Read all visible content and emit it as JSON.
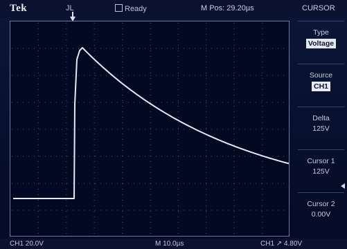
{
  "header": {
    "brand": "Tek",
    "trigger_state": "JL",
    "status": "Ready",
    "m_pos": "M Pos: 29.20µs",
    "menu_title": "CURSOR"
  },
  "side_menu": [
    {
      "label": "Type",
      "value": "Voltage",
      "highlight": true
    },
    {
      "label": "Source",
      "value": "CH1",
      "highlight": true
    },
    {
      "label": "Delta",
      "value": "125V",
      "highlight": false
    },
    {
      "label": "Cursor 1",
      "value": "125V",
      "highlight": false
    },
    {
      "label": "Cursor 2",
      "value": "0.00V",
      "highlight": false
    }
  ],
  "footer": {
    "ch1_scale": "CH1  20.0V",
    "timebase": "M 10.0µs",
    "trigger": "CH1  ↗  4.80V"
  },
  "colors": {
    "trace": "#e6e9f5",
    "grid": "#55607f",
    "background": "#040923"
  }
}
